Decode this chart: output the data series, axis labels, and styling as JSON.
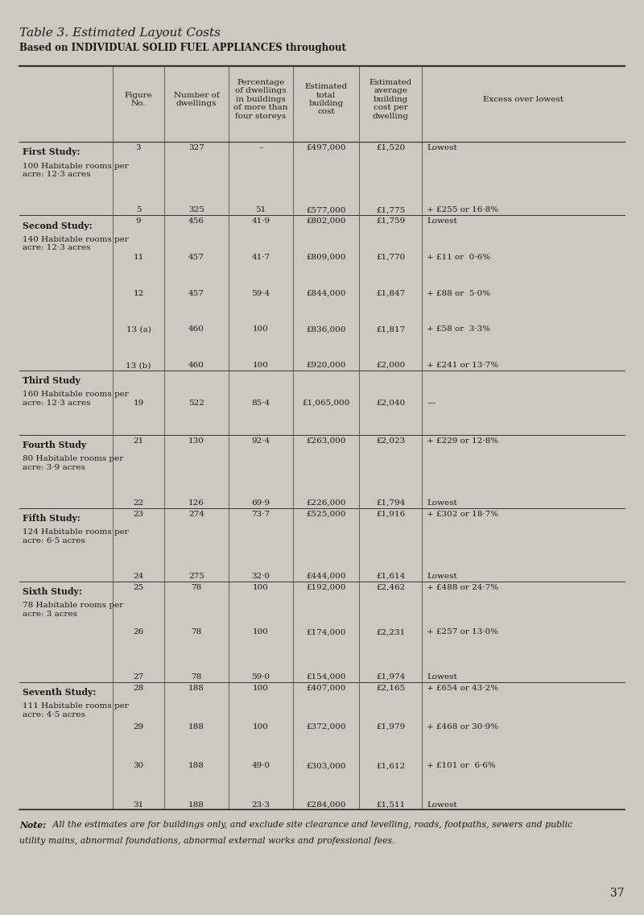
{
  "title": "Table 3. Estimated Layout Costs",
  "subtitle": "Based on INDIVIDUAL SOLID FUEL APPLIANCES throughout",
  "bg_color": "#cdc9c0",
  "text_color": "#1a1a1a",
  "page_number": "37",
  "note_italic": "Note:",
  "note_rest": " All the estimates are for buildings only, and exclude site clearance and levelling, roads, footpaths, sewers and public\nutility mains, abnormal foundations, abnormal external works and professional fees.",
  "col_headers": [
    "Figure\nNo.",
    "Number of\ndwellings",
    "Percentage\nof dwellings\nin buildings\nof more than\nfour storeys",
    "Estimated\ntotal\nbuilding\ncost",
    "Estimated\naverage\nbuilding\ncost per\ndwelling",
    "Excess over lowest"
  ],
  "sections": [
    {
      "title": "First Study:",
      "subtitle": "100 Habitable rooms per\nacre: 12·3 acres",
      "rows": [
        [
          "3",
          "327",
          "–",
          "£497,000",
          "£1,520",
          "Lowest"
        ],
        [
          "5",
          "325",
          "51",
          "£577,000",
          "£1,775",
          "+ £255 or 16·8%"
        ]
      ]
    },
    {
      "title": "Second Study:",
      "subtitle": "140 Habitable rooms per\nacre: 12·3 acres",
      "rows": [
        [
          "9",
          "456",
          "41·9",
          "£802,000",
          "£1,759",
          "Lowest"
        ],
        [
          "11",
          "457",
          "41·7",
          "£809,000",
          "£1,770",
          "+ £11 or  0·6%"
        ],
        [
          "12",
          "457",
          "59·4",
          "£844,000",
          "£1,847",
          "+ £88 or  5·0%"
        ],
        [
          "13 (a)",
          "460",
          "100",
          "£836,000",
          "£1,817",
          "+ £58 or  3·3%"
        ],
        [
          "13 (b)",
          "460",
          "100",
          "£920,000",
          "£2,000",
          "+ £241 or 13·7%"
        ]
      ]
    },
    {
      "title": "Third Study",
      "subtitle": "160 Habitable rooms per\nacre: 12·3 acres",
      "rows": [
        [
          "19",
          "522",
          "85·4",
          "£1,065,000",
          "£2,040",
          "—"
        ]
      ]
    },
    {
      "title": "Fourth Study",
      "subtitle": "80 Habitable rooms per\nacre: 3·9 acres",
      "rows": [
        [
          "21",
          "130",
          "92·4",
          "£263,000",
          "£2,023",
          "+ £229 or 12·8%"
        ],
        [
          "22",
          "126",
          "69·9",
          "£226,000",
          "£1,794",
          "Lowest"
        ]
      ]
    },
    {
      "title": "Fifth Study:",
      "subtitle": "124 Habitable rooms per\nacre: 6·5 acres",
      "rows": [
        [
          "23",
          "274",
          "73·7",
          "£525,000",
          "£1,916",
          "+ £302 or 18·7%"
        ],
        [
          "24",
          "275",
          "32·0",
          "£444,000",
          "£1,614",
          "Lowest"
        ]
      ]
    },
    {
      "title": "Sixth Study:",
      "subtitle": "78 Habitable rooms per\nacre: 3 acres",
      "rows": [
        [
          "25",
          "78",
          "100",
          "£192,000",
          "£2,462",
          "+ £488 or 24·7%"
        ],
        [
          "26",
          "78",
          "100",
          "£174,000",
          "£2,231",
          "+ £257 or 13·0%"
        ],
        [
          "27",
          "78",
          "59·0",
          "£154,000",
          "£1,974",
          "Lowest"
        ]
      ]
    },
    {
      "title": "Seventh Study:",
      "subtitle": "111 Habitable rooms per\nacre: 4·5 acres",
      "rows": [
        [
          "28",
          "188",
          "100",
          "£407,000",
          "£2,165",
          "+ £654 or 43·2%"
        ],
        [
          "29",
          "188",
          "100",
          "£372,000",
          "£1,979",
          "+ £468 or 30·9%"
        ],
        [
          "30",
          "188",
          "49·0",
          "£303,000",
          "£1,612",
          "+ £101 or  6·6%"
        ],
        [
          "31",
          "188",
          "23·3",
          "£284,000",
          "£1,511",
          "Lowest"
        ]
      ]
    }
  ]
}
